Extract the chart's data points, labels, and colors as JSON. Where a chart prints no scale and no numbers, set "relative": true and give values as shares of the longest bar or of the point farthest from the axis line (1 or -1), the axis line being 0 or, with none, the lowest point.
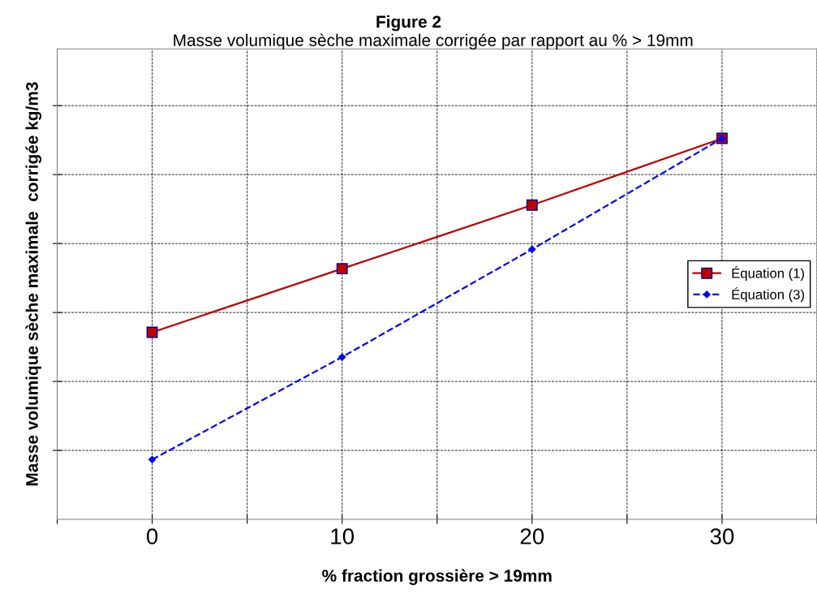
{
  "chart_data": {
    "type": "line",
    "title": "Figure 2",
    "subtitle": "Masse volumique sèche maximale corrigée par rapport au % > 19mm",
    "xlabel": "% fraction grossière > 19mm",
    "ylabel": "Masse volumique sèche maximale  corrigée kg/m3",
    "x": [
      0,
      10,
      20,
      30
    ],
    "relative": true,
    "xlim": [
      -5,
      35
    ],
    "xticks": [
      {
        "value": -5,
        "label": null
      },
      0,
      {
        "value": 5,
        "label": null
      },
      10,
      {
        "value": 15,
        "label": null
      },
      20,
      {
        "value": 25,
        "label": null
      },
      30,
      {
        "value": 35,
        "label": null
      }
    ],
    "series": [
      {
        "name": "Équation (1)",
        "color": "#c00000",
        "values": [
          0.491,
          0.658,
          0.825,
          1
        ],
        "marker": "square",
        "line_style": "solid"
      },
      {
        "name": "Équation (3)",
        "color": "#0000ff",
        "values": [
          0.157,
          0.426,
          0.709,
          1
        ],
        "marker": "diamond",
        "line_style": "dashed"
      }
    ],
    "grid": true,
    "legend": "right",
    "tick_labels": "x"
  }
}
